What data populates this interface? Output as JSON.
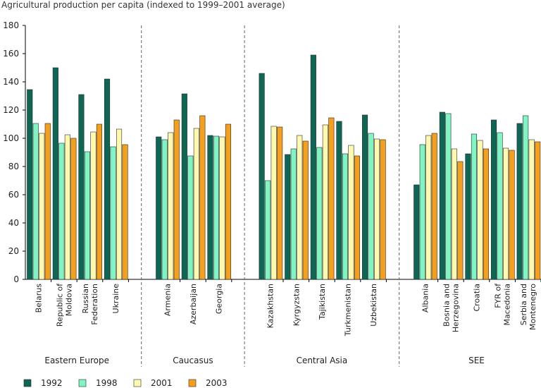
{
  "chart_data": {
    "type": "bar",
    "title": "",
    "ylabel": "Agricultural production per capita (indexed to 1999–2001 average)",
    "xlabel": "",
    "ylim": [
      0,
      180
    ],
    "yticks": [
      0,
      20,
      40,
      60,
      80,
      100,
      120,
      140,
      160,
      180
    ],
    "grid": false,
    "legend_position": "bottom",
    "series": [
      {
        "name": "1992",
        "color": "#0e6655"
      },
      {
        "name": "1998",
        "color": "#7ff5c4"
      },
      {
        "name": "2001",
        "color": "#fff9b0"
      },
      {
        "name": "2003",
        "color": "#f5a01c"
      }
    ],
    "groups": [
      {
        "name": "Eastern Europe",
        "categories": [
          {
            "label": "Belarus",
            "values": [
              134.5,
              110.5,
              103.5,
              110.5
            ]
          },
          {
            "label": "Republic of Moldova",
            "values": [
              150,
              96.5,
              102.5,
              100
            ]
          },
          {
            "label": "Russian Federation",
            "values": [
              131,
              90.5,
              104.5,
              110
            ]
          },
          {
            "label": "Ukraine",
            "values": [
              142,
              94,
              106.5,
              95.5
            ]
          }
        ]
      },
      {
        "name": "Caucasus",
        "categories": [
          {
            "label": "Armenia",
            "values": [
              101,
              99,
              104,
              113
            ]
          },
          {
            "label": "Azerbaijan",
            "values": [
              131.5,
              87.5,
              107,
              116
            ]
          },
          {
            "label": "Georgia",
            "values": [
              102,
              101.5,
              101,
              110
            ]
          }
        ]
      },
      {
        "name": "Central Asia",
        "categories": [
          {
            "label": "Kazakhstan",
            "values": [
              146,
              70,
              108.5,
              108
            ]
          },
          {
            "label": "Kyrgyzstan",
            "values": [
              88.5,
              92.5,
              102,
              98
            ]
          },
          {
            "label": "Tajikistan",
            "values": [
              159,
              93.5,
              109.5,
              114.5
            ]
          },
          {
            "label": "Turkmenistan",
            "values": [
              112,
              89,
              95,
              87.5
            ]
          },
          {
            "label": "Uzbekistan",
            "values": [
              116.5,
              103.5,
              99.5,
              99
            ]
          }
        ]
      },
      {
        "name": "SEE",
        "categories": [
          {
            "label": "Albania",
            "values": [
              67,
              95.5,
              102,
              103.5
            ]
          },
          {
            "label": "Bosnia and Herzegovina",
            "values": [
              118.5,
              117.5,
              92.5,
              83.5
            ]
          },
          {
            "label": "Croatia",
            "values": [
              89,
              103,
              98.5,
              92.5
            ]
          },
          {
            "label": "FYR of Macedonia",
            "values": [
              113,
              104,
              93,
              91.5
            ]
          },
          {
            "label": "Serbia and Montenegro",
            "values": [
              110.5,
              116,
              99,
              97.5
            ]
          }
        ]
      }
    ]
  }
}
